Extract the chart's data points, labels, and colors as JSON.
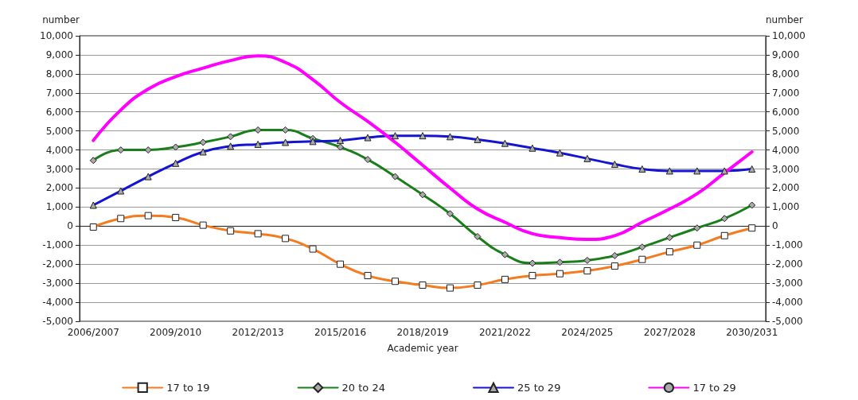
{
  "chart_data": {
    "type": "line",
    "xlabel": "Academic year",
    "ylabel": "number",
    "y2label": "number",
    "categories": [
      "2006/2007",
      null,
      null,
      "2009/2010",
      null,
      null,
      "2012/2013",
      null,
      null,
      "2015/2016",
      null,
      null,
      "2018/2019",
      null,
      null,
      "2021/2022",
      null,
      null,
      "2024/2025",
      null,
      null,
      "2027/2028",
      null,
      null,
      "2030/2031"
    ],
    "series": [
      {
        "name": "17 to 19",
        "color": "#f47b20",
        "marker": "square",
        "values": [
          -50,
          400,
          550,
          450,
          50,
          -250,
          -400,
          -650,
          -1200,
          -2000,
          -2600,
          -2900,
          -3100,
          -3250,
          -3100,
          -2800,
          -2600,
          -2500,
          -2350,
          -2100,
          -1750,
          -1350,
          -1000,
          -500,
          -100
        ]
      },
      {
        "name": "20 to 24",
        "color": "#1a7f1a",
        "marker": "diamond",
        "values": [
          3450,
          4000,
          4000,
          4150,
          4400,
          4700,
          5050,
          5050,
          4600,
          4150,
          3500,
          2600,
          1650,
          650,
          -550,
          -1500,
          -1950,
          -1900,
          -1800,
          -1550,
          -1100,
          -600,
          -100,
          400,
          1100
        ]
      },
      {
        "name": "25 to 29",
        "color": "#1414d2",
        "marker": "triangle",
        "values": [
          1100,
          1850,
          2600,
          3300,
          3900,
          4200,
          4300,
          4400,
          4450,
          4500,
          4650,
          4750,
          4750,
          4700,
          4550,
          4350,
          4100,
          3850,
          3550,
          3250,
          3000,
          2900,
          2900,
          2900,
          3000
        ]
      },
      {
        "name": "17 to 29",
        "color": "#ff00ff",
        "marker": "none",
        "values": [
          4500,
          6100,
          7200,
          7850,
          8300,
          8700,
          8950,
          8600,
          7700,
          6500,
          5500,
          4400,
          3200,
          2000,
          900,
          200,
          -400,
          -600,
          -700,
          -500,
          200,
          900,
          1700,
          2800,
          3900
        ]
      }
    ],
    "ylim": [
      -5000,
      10000
    ],
    "yticks": [
      {
        "value": -5000,
        "label": "-5,000"
      },
      {
        "value": -4000,
        "label": "-4,000"
      },
      {
        "value": -3000,
        "label": "-3,000"
      },
      {
        "value": -2000,
        "label": "-2,000"
      },
      {
        "value": -1000,
        "label": "-1,000"
      },
      0,
      {
        "value": 1000,
        "label": "1,000"
      },
      {
        "value": 2000,
        "label": "2,000"
      },
      {
        "value": 3000,
        "label": "3,000"
      },
      {
        "value": 4000,
        "label": "4,000"
      },
      {
        "value": 5000,
        "label": "5,000"
      },
      {
        "value": 6000,
        "label": "6,000"
      },
      {
        "value": 7000,
        "label": "7,000"
      },
      {
        "value": 8000,
        "label": "8,000"
      },
      {
        "value": 9000,
        "label": "9,000"
      },
      {
        "value": 10000,
        "label": "10,000"
      }
    ],
    "y2lim": [
      -5000,
      10000
    ],
    "y2ticks": [
      {
        "value": -5000,
        "label": "-5,000"
      },
      {
        "value": -4000,
        "label": "-4,000"
      },
      {
        "value": -3000,
        "label": "-3,000"
      },
      {
        "value": -2000,
        "label": "-2,000"
      },
      {
        "value": -1000,
        "label": "-1,000"
      },
      0,
      {
        "value": 1000,
        "label": "1,000"
      },
      {
        "value": 2000,
        "label": "2,000"
      },
      {
        "value": 3000,
        "label": "3,000"
      },
      {
        "value": 4000,
        "label": "4,000"
      },
      {
        "value": 5000,
        "label": "5,000"
      },
      {
        "value": 6000,
        "label": "6,000"
      },
      {
        "value": 7000,
        "label": "7,000"
      },
      {
        "value": 8000,
        "label": "8,000"
      },
      {
        "value": 9000,
        "label": "9,000"
      },
      {
        "value": 10000,
        "label": "10,000"
      }
    ],
    "grid": "y",
    "legend": "bottom"
  }
}
